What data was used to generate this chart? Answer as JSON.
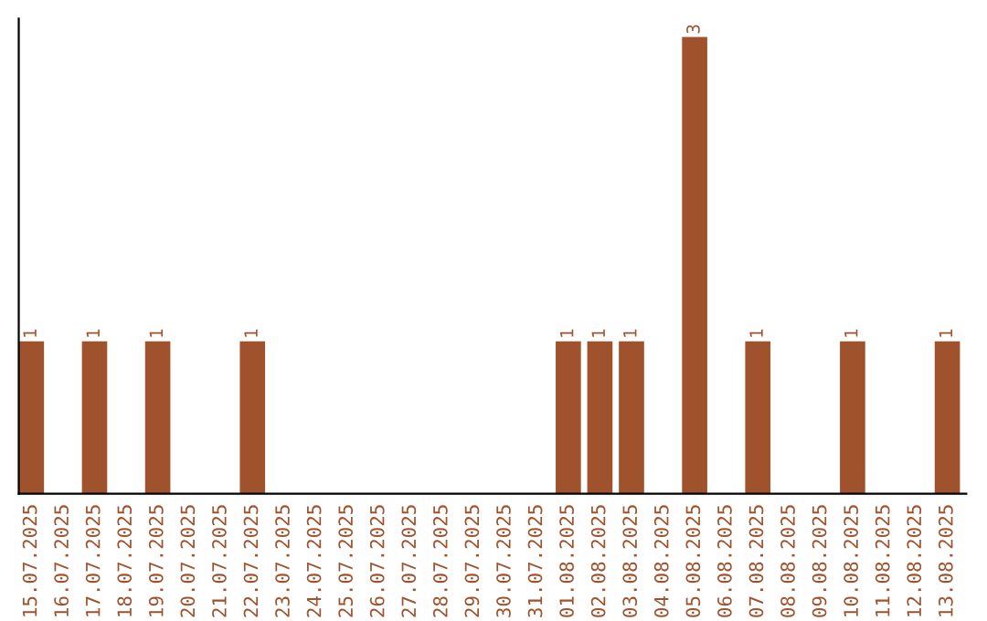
{
  "chart_data": {
    "type": "bar",
    "categories": [
      "15.07.2025",
      "16.07.2025",
      "17.07.2025",
      "18.07.2025",
      "19.07.2025",
      "20.07.2025",
      "21.07.2025",
      "22.07.2025",
      "23.07.2025",
      "24.07.2025",
      "25.07.2025",
      "26.07.2025",
      "27.07.2025",
      "28.07.2025",
      "29.07.2025",
      "30.07.2025",
      "31.07.2025",
      "01.08.2025",
      "02.08.2025",
      "03.08.2025",
      "04.08.2025",
      "05.08.2025",
      "06.08.2025",
      "07.08.2025",
      "08.08.2025",
      "09.08.2025",
      "10.08.2025",
      "11.08.2025",
      "12.08.2025",
      "13.08.2025"
    ],
    "values": [
      1,
      0,
      1,
      0,
      1,
      0,
      0,
      1,
      0,
      0,
      0,
      0,
      0,
      0,
      0,
      0,
      0,
      1,
      1,
      1,
      0,
      3,
      0,
      1,
      0,
      0,
      1,
      0,
      0,
      1
    ],
    "value_labels": [
      "1",
      null,
      "1",
      null,
      "1",
      null,
      null,
      "1",
      null,
      null,
      null,
      null,
      null,
      null,
      null,
      null,
      null,
      "1",
      "1",
      "1",
      null,
      "3",
      null,
      "1",
      null,
      null,
      "1",
      null,
      null,
      "1"
    ],
    "color": "#a0522d",
    "tick_labels": "x",
    "grid": false,
    "legend": false
  }
}
